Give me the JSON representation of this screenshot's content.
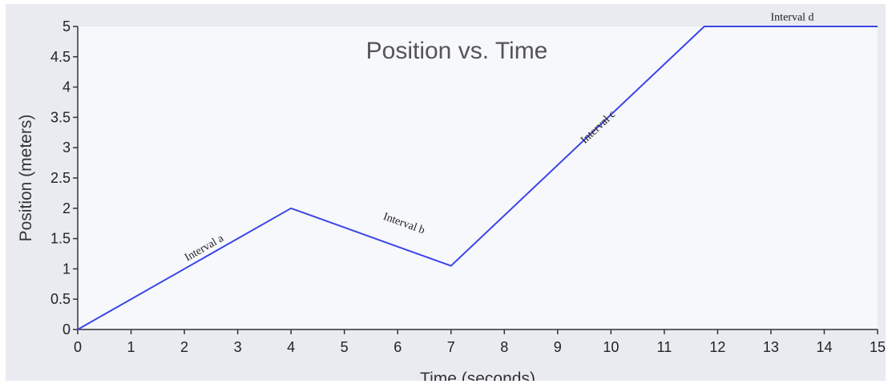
{
  "chart_data": {
    "type": "line",
    "title": "Position vs. Time",
    "xlabel": "Time (seconds)",
    "ylabel": "Position (meters)",
    "xlim": [
      0,
      15
    ],
    "ylim": [
      0,
      5
    ],
    "x_ticks": [
      "0",
      "1",
      "2",
      "3",
      "4",
      "5",
      "6",
      "7",
      "8",
      "9",
      "10",
      "11",
      "12",
      "13",
      "14",
      "15"
    ],
    "y_ticks": [
      "0",
      "0.5",
      "1",
      "1.5",
      "2",
      "2.5",
      "3",
      "3.5",
      "4",
      "4.5",
      "5"
    ],
    "grid": false,
    "series": [
      {
        "color": "#3b46e6",
        "points": [
          {
            "x": 0,
            "y": 0
          },
          {
            "x": 4,
            "y": 2
          },
          {
            "x": 7,
            "y": 1.05
          },
          {
            "x": 11.75,
            "y": 5
          },
          {
            "x": 15,
            "y": 5
          }
        ]
      }
    ],
    "annotations": [
      {
        "text": "Interval a",
        "x": 2.4,
        "y": 1.3
      },
      {
        "text": "Interval b",
        "x": 6.1,
        "y": 1.7
      },
      {
        "text": "Interval c",
        "x": 9.8,
        "y": 3.3
      },
      {
        "text": "Interval d",
        "x": 13.4,
        "y": 5.1
      }
    ]
  },
  "colors": {
    "frame_background": "#e9ebf1",
    "plot_background": "#f7f8fc",
    "axis": "#333333",
    "line": "#3b46e6"
  }
}
